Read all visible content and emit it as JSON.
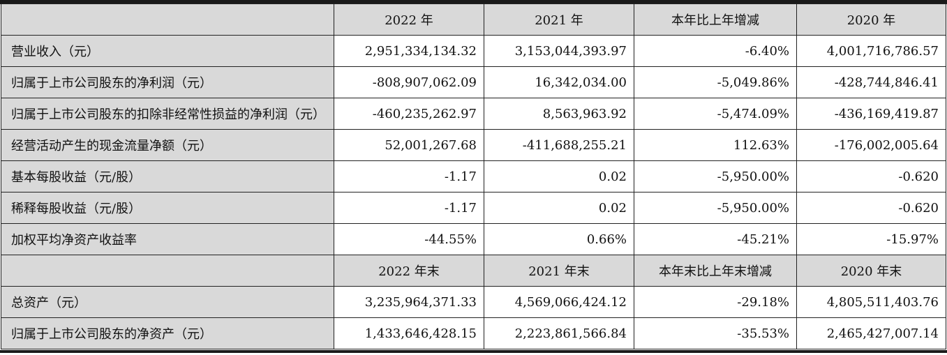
{
  "header1": [
    "",
    "2022 年",
    "2021 年",
    "本年比上年增减",
    "2020 年"
  ],
  "rows1": [
    {
      "label": "营业收入（元）",
      "values": [
        "2,951,334,134.32",
        "3,153,044,393.97",
        "-6.40%",
        "4,001,716,786.57"
      ]
    },
    {
      "label": "归属于上市公司股东的净利润（元）",
      "values": [
        "-808,907,062.09",
        "16,342,034.00",
        "-5,049.86%",
        "-428,744,846.41"
      ]
    },
    {
      "label": "归属于上市公司股东的扣除非经常性损益的净利润（元）",
      "values": [
        "-460,235,262.97",
        "8,563,963.92",
        "-5,474.09%",
        "-436,169,419.87"
      ]
    },
    {
      "label": "经营活动产生的现金流量净额（元）",
      "values": [
        "52,001,267.68",
        "-411,688,255.21",
        "112.63%",
        "-176,002,005.64"
      ]
    },
    {
      "label": "基本每股收益（元/股）",
      "values": [
        "-1.17",
        "0.02",
        "-5,950.00%",
        "-0.620"
      ]
    },
    {
      "label": "稀释每股收益（元/股）",
      "values": [
        "-1.17",
        "0.02",
        "-5,950.00%",
        "-0.620"
      ]
    },
    {
      "label": "加权平均净资产收益率",
      "values": [
        "-44.55%",
        "0.66%",
        "-45.21%",
        "-15.97%"
      ]
    }
  ],
  "header2": [
    "",
    "2022 年末",
    "2021 年末",
    "本年末比上年末增减",
    "2020 年末"
  ],
  "rows2": [
    {
      "label": "总资产（元）",
      "values": [
        "3,235,964,371.33",
        "4,569,066,424.12",
        "-29.18%",
        "4,805,511,403.76"
      ]
    },
    {
      "label": "归属于上市公司股东的净资产（元）",
      "values": [
        "1,433,646,428.15",
        "2,223,861,566.84",
        "-35.53%",
        "2,465,427,007.14"
      ]
    }
  ]
}
